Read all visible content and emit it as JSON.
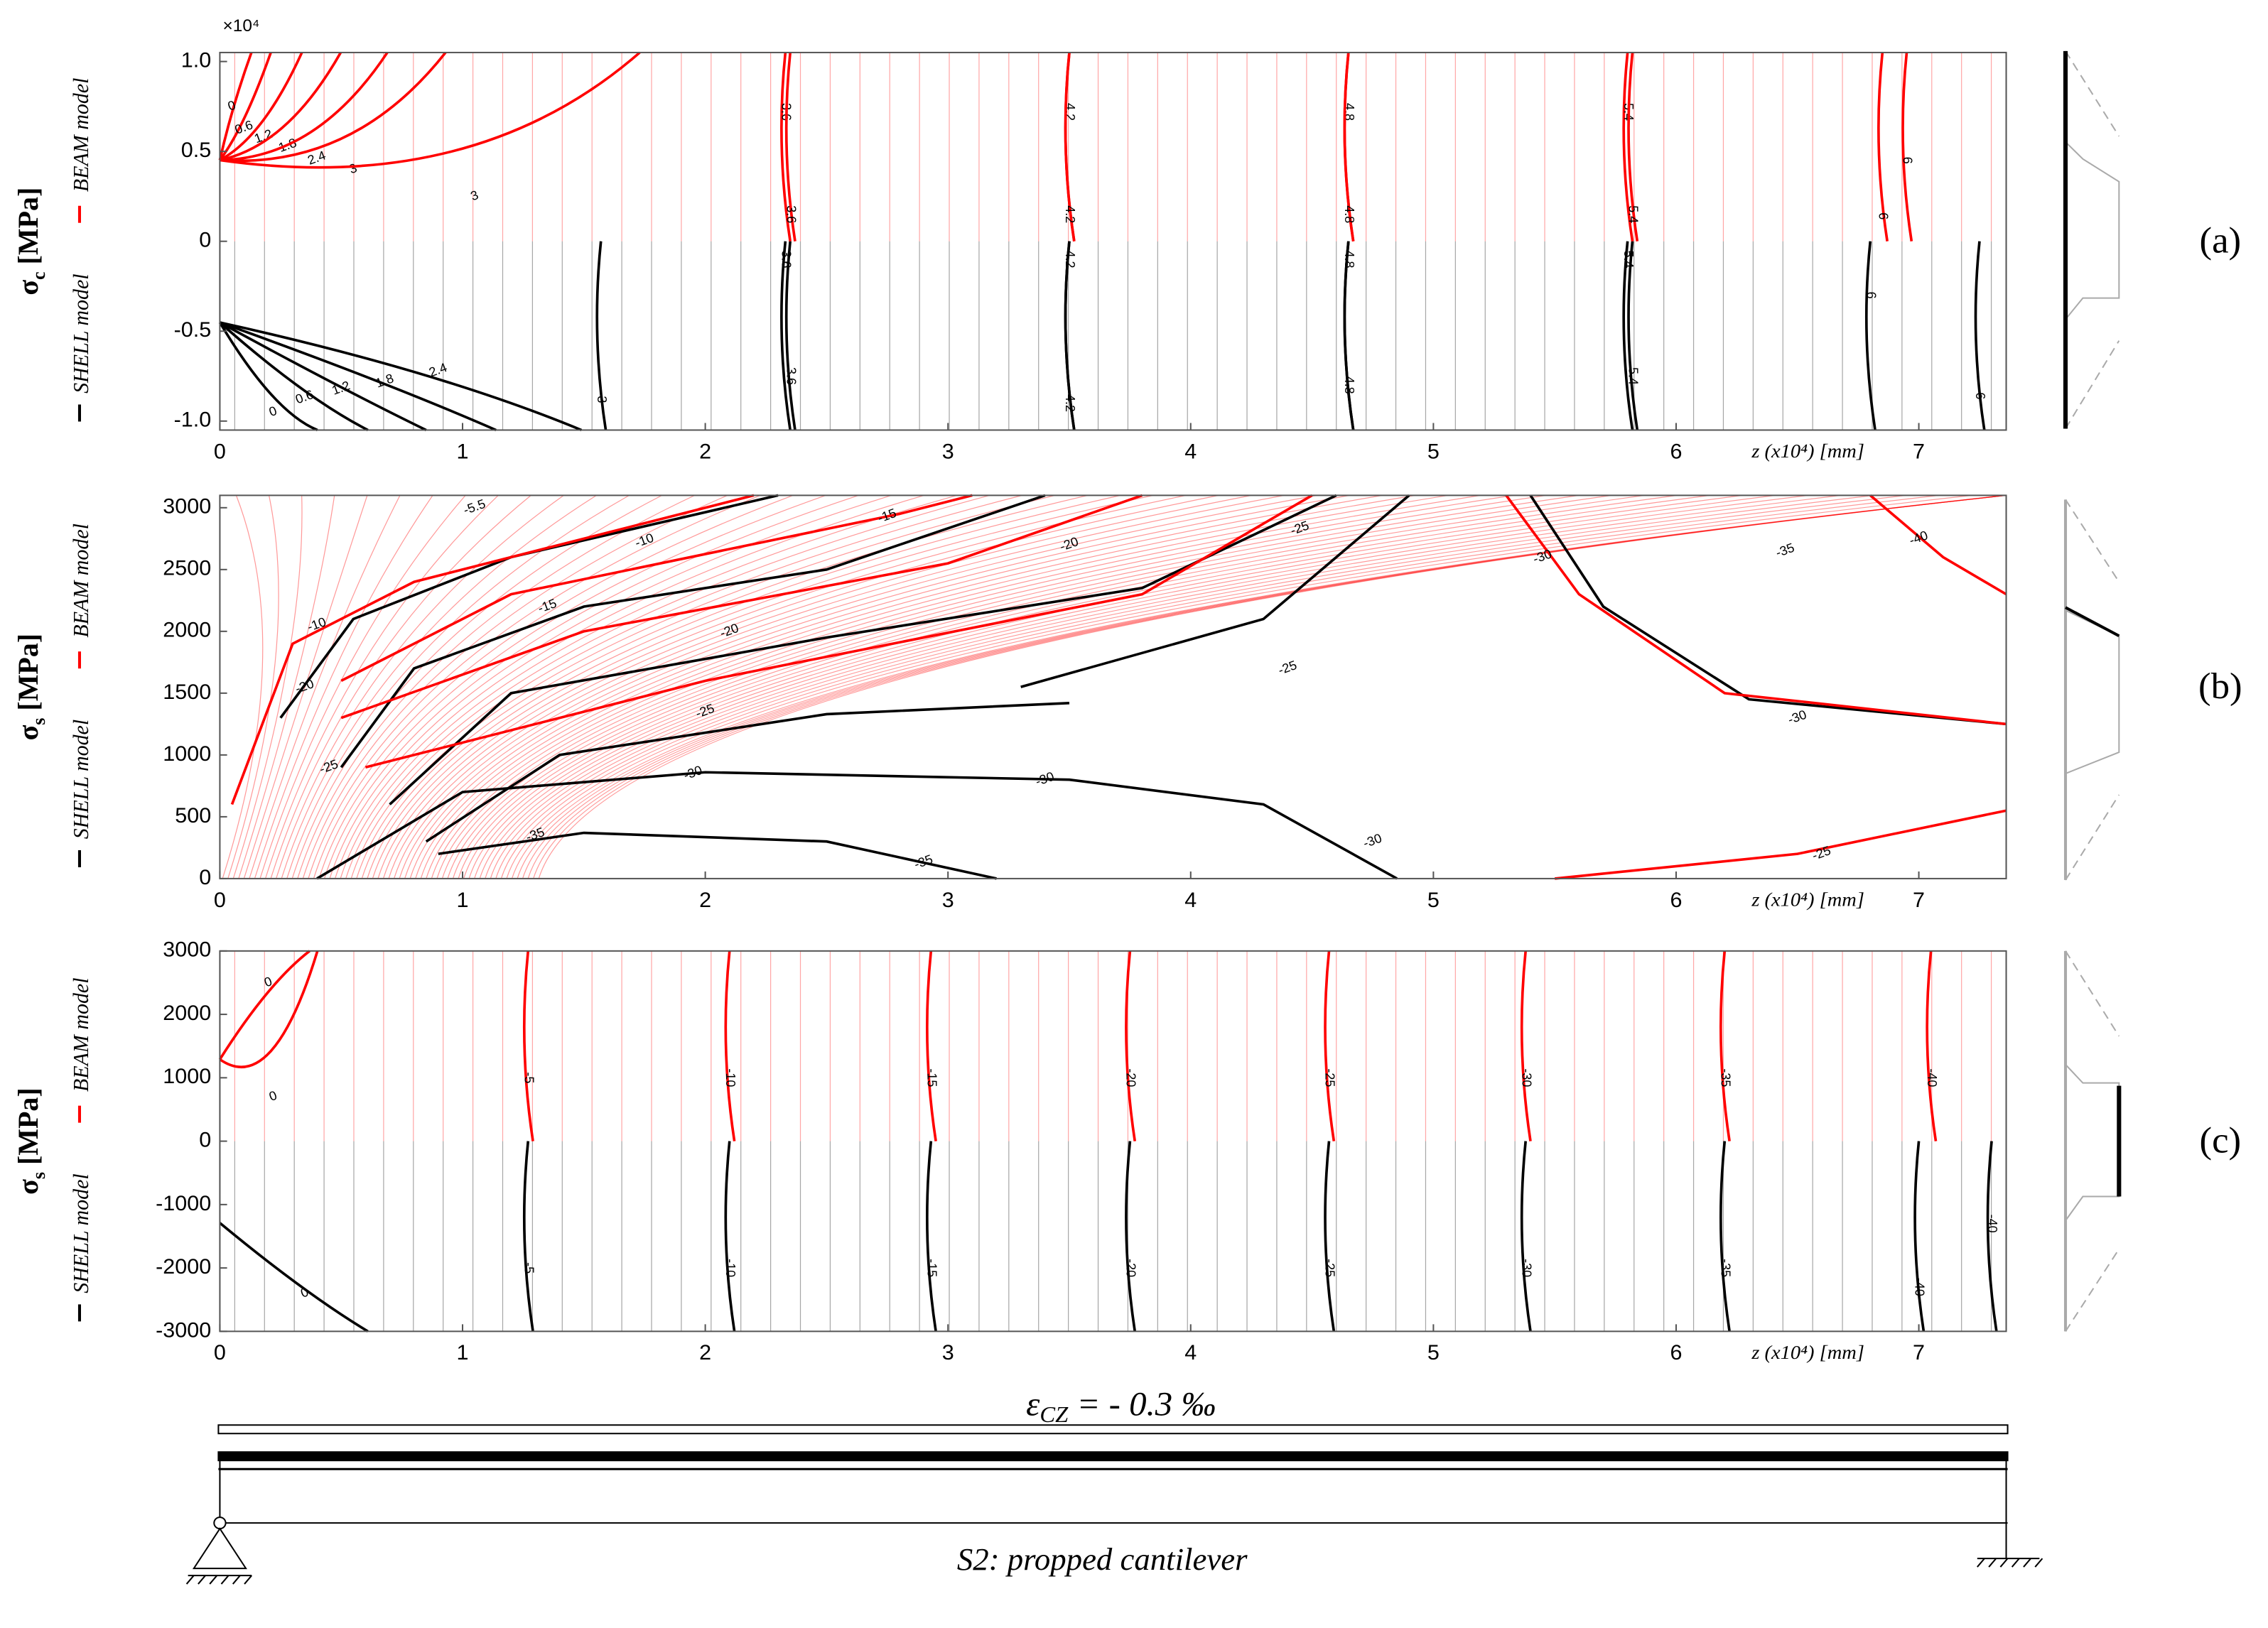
{
  "chart_data": [
    {
      "type": "contour",
      "panel_label": "(a)",
      "y_symbol": "σ",
      "y_sub": "c",
      "y_unit": " [MPa]",
      "y_multiplier": "×10⁴",
      "xlabel": "z (x10⁴)  [mm]",
      "series": [
        {
          "name": "SHELL model",
          "color": "#000000"
        },
        {
          "name": "BEAM model",
          "color": "#ff0000"
        }
      ],
      "xlim": [
        0,
        7.36
      ],
      "xticks": [
        0,
        1,
        2,
        3,
        4,
        5,
        6,
        7
      ],
      "ylim": [
        -1.05,
        1.05
      ],
      "yticks": [
        {
          "value": -1,
          "label": "-1.0"
        },
        -0.5,
        0,
        0.5,
        {
          "value": 1,
          "label": "1.0"
        }
      ],
      "beam_levels": [
        0,
        0.6,
        1.2,
        1.8,
        2.4,
        3,
        3,
        3.6,
        3.6,
        4.2,
        4.2,
        4.8,
        4.8,
        5.4,
        5.4,
        6,
        6
      ],
      "shell_levels": [
        0,
        0.6,
        1.2,
        1.8,
        2.4,
        3,
        3.6,
        3.6,
        4.2,
        4.2,
        4.8,
        4.8,
        5.4,
        5.4,
        6,
        6
      ]
    },
    {
      "type": "contour",
      "panel_label": "(b)",
      "y_symbol": "σ",
      "y_sub": "s",
      "y_unit": " [MPa]",
      "xlabel": "z (x10⁴)  [mm]",
      "series": [
        {
          "name": "SHELL model",
          "color": "#000000"
        },
        {
          "name": "BEAM model",
          "color": "#ff0000"
        }
      ],
      "xlim": [
        0,
        7.36
      ],
      "xticks": [
        0,
        1,
        2,
        3,
        4,
        5,
        6,
        7
      ],
      "ylim": [
        0,
        3100
      ],
      "yticks": [
        0,
        500,
        1000,
        1500,
        2000,
        2500,
        3000
      ],
      "beam_levels": [
        -5.5,
        -10,
        -15,
        -20,
        -25,
        -30,
        -35,
        -40,
        -20,
        -25,
        -25
      ],
      "shell_levels": [
        -10,
        -15,
        -20,
        -25,
        -30,
        -30,
        -35,
        -35,
        -30,
        -30,
        -25
      ]
    },
    {
      "type": "contour",
      "panel_label": "(c)",
      "y_symbol": "σ",
      "y_sub": "s",
      "y_unit": " [MPa]",
      "xlabel": "z (x10⁴)  [mm]",
      "series": [
        {
          "name": "SHELL model",
          "color": "#000000"
        },
        {
          "name": "BEAM model",
          "color": "#ff0000"
        }
      ],
      "xlim": [
        0,
        7.36
      ],
      "xticks": [
        0,
        1,
        2,
        3,
        4,
        5,
        6,
        7
      ],
      "ylim": [
        -3000,
        3000
      ],
      "yticks": [
        -3000,
        -2000,
        -1000,
        0,
        1000,
        2000,
        3000
      ],
      "beam_levels": [
        0,
        0,
        -5,
        -10,
        -15,
        -20,
        -25,
        -30,
        -35,
        -40
      ],
      "shell_levels": [
        0,
        -5,
        -10,
        -15,
        -20,
        -25,
        -30,
        -35,
        -40,
        -40
      ]
    }
  ],
  "figure": {
    "strain_symbol": "ε",
    "strain_sub": "CZ",
    "strain_text": " = - 0.3 ‰",
    "caption": "S2:  propped cantilever"
  }
}
